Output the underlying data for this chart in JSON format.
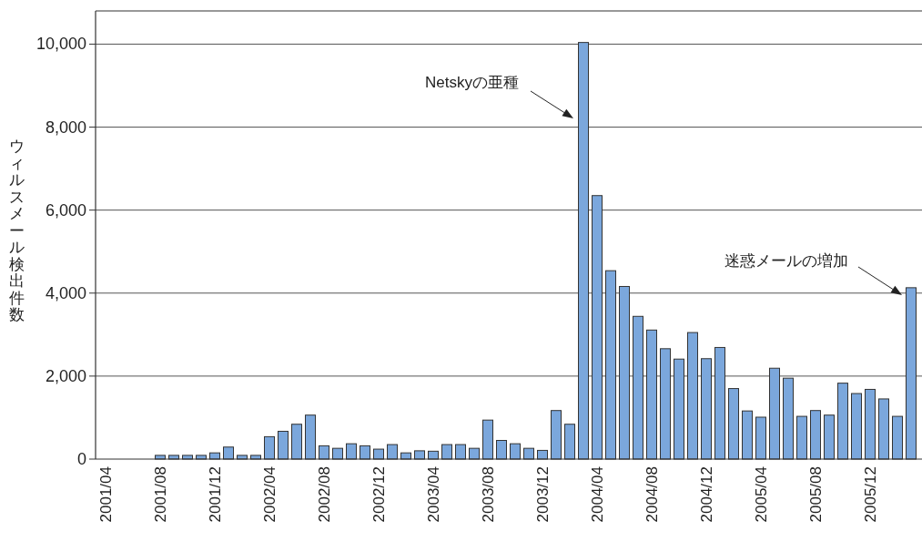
{
  "chart_data": {
    "type": "bar",
    "ylabel": "ウィルスメール検出件数",
    "categories": [
      "2001/04",
      null,
      null,
      null,
      "2001/08",
      null,
      null,
      null,
      "2001/12",
      null,
      null,
      null,
      "2002/04",
      null,
      null,
      null,
      "2002/08",
      null,
      null,
      null,
      "2002/12",
      null,
      null,
      null,
      "2003/04",
      null,
      null,
      null,
      "2003/08",
      null,
      null,
      null,
      "2003/12",
      null,
      null,
      null,
      "2004/04",
      null,
      null,
      null,
      "2004/08",
      null,
      null,
      null,
      "2004/12",
      null,
      null,
      null,
      "2005/04",
      null,
      null,
      null,
      "2005/08",
      null,
      null,
      null,
      "2005/12",
      null,
      null,
      null
    ],
    "values": [
      null,
      null,
      null,
      null,
      90,
      90,
      90,
      90,
      150,
      290,
      90,
      90,
      540,
      670,
      840,
      1060,
      320,
      260,
      370,
      320,
      240,
      350,
      150,
      200,
      190,
      350,
      350,
      260,
      940,
      450,
      370,
      260,
      210,
      1170,
      840,
      10040,
      6350,
      4540,
      4160,
      3440,
      3110,
      2660,
      2410,
      3050,
      2420,
      2690,
      1700,
      1160,
      1010,
      2190,
      1950,
      1030,
      1170,
      1060,
      1830,
      1580,
      1680,
      1450,
      1030,
      4130
    ],
    "color": "#7ba7dc",
    "ylim": [
      0,
      10800
    ],
    "yticks": [
      0,
      {
        "value": 2000,
        "label": "2,000"
      },
      {
        "value": 4000,
        "label": "4,000"
      },
      {
        "value": 6000,
        "label": "6,000"
      },
      {
        "value": 8000,
        "label": "8,000"
      },
      {
        "value": 10000,
        "label": "10,000"
      }
    ],
    "grid": "y",
    "annotations": [
      "Netskyの亜種",
      "迷惑メールの増加"
    ]
  }
}
